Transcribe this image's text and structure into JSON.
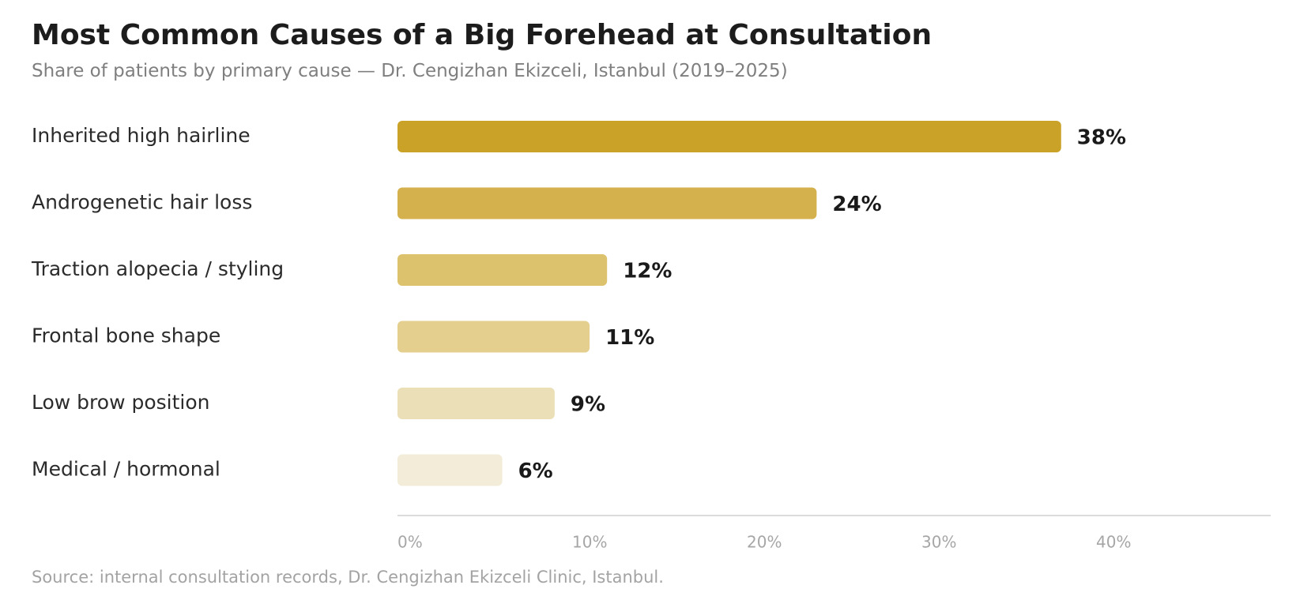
{
  "chart_data": {
    "type": "bar",
    "orientation": "horizontal",
    "title": "Most Common Causes of a Big Forehead at Consultation",
    "subtitle": "Share of patients by primary cause — Dr. Cengizhan Ekizceli, Istanbul (2019–2025)",
    "source": "Source: internal consultation records, Dr. Cengizhan Ekizceli Clinic, Istanbul.",
    "categories": [
      "Inherited high hairline",
      "Androgenetic hair loss",
      "Traction alopecia / styling",
      "Frontal bone shape",
      "Low brow position",
      "Medical / hormonal"
    ],
    "values": [
      38,
      24,
      12,
      11,
      9,
      6
    ],
    "value_labels": [
      "38%",
      "24%",
      "12%",
      "11%",
      "9%",
      "6%"
    ],
    "colors": [
      "#c9a227",
      "#d4b14c",
      "#ddc26e",
      "#e5cf8f",
      "#ebdfb7",
      "#f3ecd8"
    ],
    "xlim": [
      0,
      50
    ],
    "xticks": [
      0,
      10,
      20,
      30,
      40
    ],
    "xtick_labels": [
      "0%",
      "10%",
      "20%",
      "30%",
      "40%"
    ],
    "xlabel": "",
    "ylabel": "",
    "grid": false,
    "legend": false
  }
}
